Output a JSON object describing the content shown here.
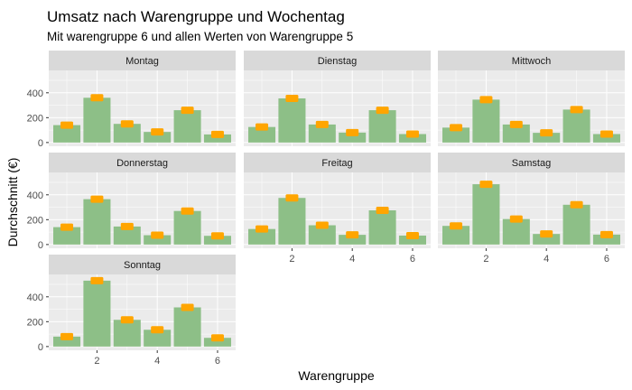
{
  "chart_data": {
    "type": "bar",
    "title": "Umsatz nach Warengruppe und Wochentag",
    "subtitle": "Mit warengruppe 6 und allen Werten von Warengruppe 5",
    "xlabel": "Warengruppe",
    "ylabel": "Durchschnitt (€)",
    "x_ticks": [
      2,
      4,
      6
    ],
    "y_ticks": [
      0,
      200,
      400
    ],
    "ylim": [
      -30,
      580
    ],
    "colors": {
      "bar": "#8dbf87",
      "point": "#ffa500",
      "panel": "#ebebeb",
      "strip": "#d9d9d9",
      "grid": "#ffffff"
    },
    "grid": true,
    "facets": [
      {
        "label": "Montag",
        "categories": [
          1,
          2,
          3,
          4,
          5,
          6
        ],
        "values": [
          140,
          360,
          150,
          85,
          260,
          65
        ]
      },
      {
        "label": "Dienstag",
        "categories": [
          1,
          2,
          3,
          4,
          5,
          6
        ],
        "values": [
          125,
          355,
          145,
          80,
          260,
          68
        ]
      },
      {
        "label": "Mittwoch",
        "categories": [
          1,
          2,
          3,
          4,
          5,
          6
        ],
        "values": [
          120,
          345,
          145,
          78,
          265,
          68
        ]
      },
      {
        "label": "Donnerstag",
        "categories": [
          1,
          2,
          3,
          4,
          5,
          6
        ],
        "values": [
          140,
          365,
          145,
          75,
          270,
          70
        ]
      },
      {
        "label": "Freitag",
        "categories": [
          1,
          2,
          3,
          4,
          5,
          6
        ],
        "values": [
          125,
          375,
          155,
          78,
          275,
          72
        ]
      },
      {
        "label": "Samstag",
        "categories": [
          1,
          2,
          3,
          4,
          5,
          6
        ],
        "values": [
          150,
          485,
          205,
          85,
          320,
          80
        ]
      },
      {
        "label": "Sonntag",
        "categories": [
          1,
          2,
          3,
          4,
          5,
          6
        ],
        "values": [
          80,
          530,
          215,
          135,
          315,
          70
        ]
      }
    ]
  }
}
